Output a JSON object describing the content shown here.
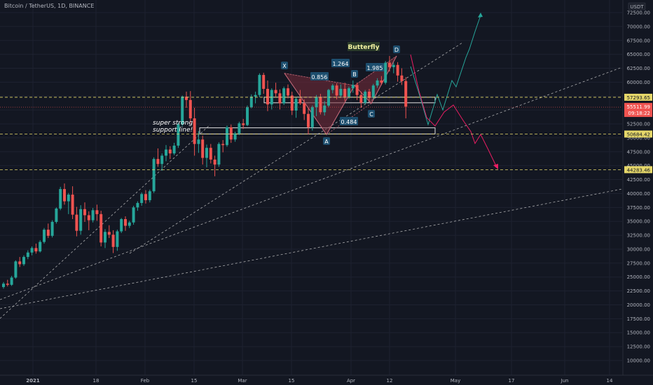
{
  "header": {
    "symbol_title": "Bitcoin / TetherUS, 1D, BINANCE"
  },
  "colors": {
    "background": "#131722",
    "bull": "#26a69a",
    "bear": "#ef5350",
    "grid": "#1e2230",
    "axis_text": "#b2b5be",
    "level_line": "#e6d86a",
    "trend_line": "#c8c8c8",
    "pattern_fill": "#7a2c3a",
    "projection_bull": "#26a69a",
    "projection_bear": "#e91e63"
  },
  "chart_data": {
    "type": "candlestick",
    "title": "Bitcoin / TetherUS, 1D, BINANCE",
    "currency": "USDT",
    "y_range": [
      5000,
      75000
    ],
    "log_scale": false,
    "grid": true,
    "y_tick_labels": [
      "10000.00",
      "12500.00",
      "15000.00",
      "17500.00",
      "20000.00",
      "22500.00",
      "25000.00",
      "27500.00",
      "30000.00",
      "32500.00",
      "35000.00",
      "37500.00",
      "40000.00",
      "42500.00",
      "45000.00",
      "47500.00",
      "50000.00",
      "52500.00",
      "55000.00",
      "57500.00",
      "60000.00",
      "62500.00",
      "65000.00",
      "67500.00",
      "70000.00",
      "72500.00"
    ],
    "x_tick_labels": [
      "2021",
      "18",
      "Feb",
      "15",
      "Mar",
      "15",
      "Apr",
      "12",
      "May",
      "17",
      "Jun",
      "14"
    ],
    "price_levels": [
      {
        "label": "57293.65",
        "value": 57293.65,
        "style": "dashed",
        "color": "#e6d86a"
      },
      {
        "label": "50684.42",
        "value": 50684.42,
        "style": "dashed",
        "color": "#e6d86a"
      },
      {
        "label": "44283.46",
        "value": 44283.46,
        "style": "dashed",
        "color": "#e6d86a"
      }
    ],
    "current_price": {
      "label": "55511.99",
      "countdown": "09:18:22",
      "value": 55511.99,
      "color": "#ef5350"
    },
    "candles": [
      {
        "o": 23200,
        "h": 24100,
        "l": 22900,
        "c": 23800
      },
      {
        "o": 23800,
        "h": 24500,
        "l": 23300,
        "c": 23600
      },
      {
        "o": 23600,
        "h": 25200,
        "l": 23400,
        "c": 24900
      },
      {
        "o": 24900,
        "h": 28000,
        "l": 24700,
        "c": 27800
      },
      {
        "o": 27800,
        "h": 28600,
        "l": 26800,
        "c": 27300
      },
      {
        "o": 27300,
        "h": 28900,
        "l": 27000,
        "c": 28600
      },
      {
        "o": 28600,
        "h": 29800,
        "l": 28200,
        "c": 29400
      },
      {
        "o": 29400,
        "h": 30500,
        "l": 28900,
        "c": 30200
      },
      {
        "o": 30200,
        "h": 31000,
        "l": 29200,
        "c": 29600
      },
      {
        "o": 29600,
        "h": 31600,
        "l": 29400,
        "c": 31300
      },
      {
        "o": 31300,
        "h": 33800,
        "l": 31000,
        "c": 33500
      },
      {
        "o": 33500,
        "h": 34600,
        "l": 32000,
        "c": 32400
      },
      {
        "o": 32400,
        "h": 35200,
        "l": 32100,
        "c": 34900
      },
      {
        "o": 34900,
        "h": 37500,
        "l": 34600,
        "c": 37300
      },
      {
        "o": 37300,
        "h": 41200,
        "l": 37000,
        "c": 40800
      },
      {
        "o": 40800,
        "h": 41800,
        "l": 38000,
        "c": 38600
      },
      {
        "o": 38600,
        "h": 40100,
        "l": 36300,
        "c": 39800
      },
      {
        "o": 39800,
        "h": 41300,
        "l": 35400,
        "c": 36200
      },
      {
        "o": 36200,
        "h": 37600,
        "l": 32300,
        "c": 33300
      },
      {
        "o": 33300,
        "h": 37900,
        "l": 32600,
        "c": 37200
      },
      {
        "o": 37200,
        "h": 38400,
        "l": 34900,
        "c": 36100
      },
      {
        "o": 36100,
        "h": 36800,
        "l": 33400,
        "c": 35200
      },
      {
        "o": 35200,
        "h": 37400,
        "l": 34800,
        "c": 37000
      },
      {
        "o": 37000,
        "h": 38000,
        "l": 35100,
        "c": 36300
      },
      {
        "o": 36300,
        "h": 36900,
        "l": 30500,
        "c": 31200
      },
      {
        "o": 31200,
        "h": 33600,
        "l": 30200,
        "c": 33100
      },
      {
        "o": 33100,
        "h": 34300,
        "l": 32000,
        "c": 32600
      },
      {
        "o": 32600,
        "h": 33400,
        "l": 29300,
        "c": 30400
      },
      {
        "o": 30400,
        "h": 33500,
        "l": 29700,
        "c": 33200
      },
      {
        "o": 33200,
        "h": 35600,
        "l": 32900,
        "c": 35400
      },
      {
        "o": 35400,
        "h": 35900,
        "l": 33300,
        "c": 34200
      },
      {
        "o": 34200,
        "h": 35100,
        "l": 33800,
        "c": 34800
      },
      {
        "o": 34800,
        "h": 37800,
        "l": 34400,
        "c": 37500
      },
      {
        "o": 37500,
        "h": 38600,
        "l": 36900,
        "c": 38300
      },
      {
        "o": 38300,
        "h": 40200,
        "l": 37800,
        "c": 39900
      },
      {
        "o": 39900,
        "h": 40600,
        "l": 38200,
        "c": 38800
      },
      {
        "o": 38800,
        "h": 40700,
        "l": 38400,
        "c": 40400
      },
      {
        "o": 40400,
        "h": 46500,
        "l": 40100,
        "c": 46200
      },
      {
        "o": 46200,
        "h": 48100,
        "l": 44800,
        "c": 45300
      },
      {
        "o": 45300,
        "h": 47200,
        "l": 44100,
        "c": 46800
      },
      {
        "o": 46800,
        "h": 48700,
        "l": 45800,
        "c": 47900
      },
      {
        "o": 47900,
        "h": 48500,
        "l": 46200,
        "c": 47200
      },
      {
        "o": 47200,
        "h": 49100,
        "l": 46900,
        "c": 48600
      },
      {
        "o": 48600,
        "h": 52700,
        "l": 48200,
        "c": 52400
      },
      {
        "o": 52400,
        "h": 57600,
        "l": 52100,
        "c": 57400
      },
      {
        "o": 57400,
        "h": 58300,
        "l": 55400,
        "c": 56800
      },
      {
        "o": 56800,
        "h": 58400,
        "l": 52600,
        "c": 53500
      },
      {
        "o": 53500,
        "h": 55400,
        "l": 46800,
        "c": 48900
      },
      {
        "o": 48900,
        "h": 51200,
        "l": 47300,
        "c": 49700
      },
      {
        "o": 49700,
        "h": 50400,
        "l": 45200,
        "c": 46400
      },
      {
        "o": 46400,
        "h": 48800,
        "l": 44700,
        "c": 48200
      },
      {
        "o": 48200,
        "h": 48900,
        "l": 45400,
        "c": 46100
      },
      {
        "o": 46100,
        "h": 46800,
        "l": 43100,
        "c": 45200
      },
      {
        "o": 45200,
        "h": 49200,
        "l": 44800,
        "c": 48900
      },
      {
        "o": 48900,
        "h": 49600,
        "l": 47400,
        "c": 48700
      },
      {
        "o": 48700,
        "h": 52200,
        "l": 48400,
        "c": 51900
      },
      {
        "o": 51900,
        "h": 52400,
        "l": 49100,
        "c": 49700
      },
      {
        "o": 49700,
        "h": 51100,
        "l": 49300,
        "c": 50800
      },
      {
        "o": 50800,
        "h": 52900,
        "l": 50500,
        "c": 52600
      },
      {
        "o": 52600,
        "h": 53400,
        "l": 51600,
        "c": 52300
      },
      {
        "o": 52300,
        "h": 55800,
        "l": 52100,
        "c": 55500
      },
      {
        "o": 55500,
        "h": 57800,
        "l": 55300,
        "c": 57400
      },
      {
        "o": 57400,
        "h": 58300,
        "l": 56200,
        "c": 57700
      },
      {
        "o": 57700,
        "h": 61600,
        "l": 57300,
        "c": 61300
      },
      {
        "o": 61300,
        "h": 61700,
        "l": 57900,
        "c": 58800
      },
      {
        "o": 58800,
        "h": 60300,
        "l": 54800,
        "c": 56000
      },
      {
        "o": 56000,
        "h": 58900,
        "l": 55100,
        "c": 58600
      },
      {
        "o": 58600,
        "h": 59900,
        "l": 57400,
        "c": 58000
      },
      {
        "o": 58000,
        "h": 58700,
        "l": 55100,
        "c": 56200
      },
      {
        "o": 56200,
        "h": 59200,
        "l": 55900,
        "c": 58900
      },
      {
        "o": 58900,
        "h": 59600,
        "l": 57100,
        "c": 57600
      },
      {
        "o": 57600,
        "h": 58300,
        "l": 54100,
        "c": 54900
      },
      {
        "o": 54900,
        "h": 57300,
        "l": 53600,
        "c": 57000
      },
      {
        "o": 57000,
        "h": 58600,
        "l": 55900,
        "c": 56200
      },
      {
        "o": 56200,
        "h": 56900,
        "l": 53200,
        "c": 54300
      },
      {
        "o": 54300,
        "h": 55400,
        "l": 50600,
        "c": 51900
      },
      {
        "o": 51900,
        "h": 55800,
        "l": 51300,
        "c": 55500
      },
      {
        "o": 55500,
        "h": 57700,
        "l": 53900,
        "c": 57300
      },
      {
        "o": 57300,
        "h": 57900,
        "l": 54200,
        "c": 54600
      },
      {
        "o": 54600,
        "h": 56600,
        "l": 54000,
        "c": 55800
      },
      {
        "o": 55800,
        "h": 58800,
        "l": 55500,
        "c": 58600
      },
      {
        "o": 58600,
        "h": 59700,
        "l": 58000,
        "c": 59400
      },
      {
        "o": 59400,
        "h": 59800,
        "l": 56900,
        "c": 57600
      },
      {
        "o": 57600,
        "h": 59600,
        "l": 57200,
        "c": 58800
      },
      {
        "o": 58800,
        "h": 59900,
        "l": 56600,
        "c": 57400
      },
      {
        "o": 57400,
        "h": 59200,
        "l": 57000,
        "c": 58900
      },
      {
        "o": 58900,
        "h": 60300,
        "l": 58100,
        "c": 59500
      },
      {
        "o": 59500,
        "h": 59900,
        "l": 56800,
        "c": 57700
      },
      {
        "o": 57700,
        "h": 58300,
        "l": 55400,
        "c": 56300
      },
      {
        "o": 56300,
        "h": 58600,
        "l": 56000,
        "c": 58300
      },
      {
        "o": 58300,
        "h": 58800,
        "l": 56500,
        "c": 57200
      },
      {
        "o": 57200,
        "h": 59700,
        "l": 56900,
        "c": 59400
      },
      {
        "o": 59400,
        "h": 60700,
        "l": 59000,
        "c": 60300
      },
      {
        "o": 60300,
        "h": 61100,
        "l": 59500,
        "c": 59900
      },
      {
        "o": 59900,
        "h": 63800,
        "l": 59600,
        "c": 63500
      },
      {
        "o": 63500,
        "h": 64700,
        "l": 61900,
        "c": 62700
      },
      {
        "o": 62700,
        "h": 63500,
        "l": 61600,
        "c": 63100
      },
      {
        "o": 63100,
        "h": 63600,
        "l": 60100,
        "c": 61200
      },
      {
        "o": 61200,
        "h": 62500,
        "l": 59500,
        "c": 60200
      },
      {
        "o": 60200,
        "h": 60900,
        "l": 53500,
        "c": 55600
      }
    ],
    "harmonic_pattern": {
      "name": "Butterfly",
      "points": [
        {
          "label": "X",
          "value": 61600
        },
        {
          "label": "A",
          "value": 50600
        },
        {
          "label": "B",
          "value": 59400
        },
        {
          "label": "C",
          "value": 56200
        },
        {
          "label": "D",
          "value": 64700
        }
      ],
      "ratios": [
        {
          "label": "0.856"
        },
        {
          "label": "1.264"
        },
        {
          "label": "1.985"
        },
        {
          "label": "0.484"
        }
      ]
    },
    "annotations": [
      {
        "text": "super strong"
      },
      {
        "text": "support line!"
      }
    ],
    "zones": [
      {
        "from": 56300,
        "to": 57300
      },
      {
        "from": 50700,
        "to": 51800
      }
    ]
  }
}
